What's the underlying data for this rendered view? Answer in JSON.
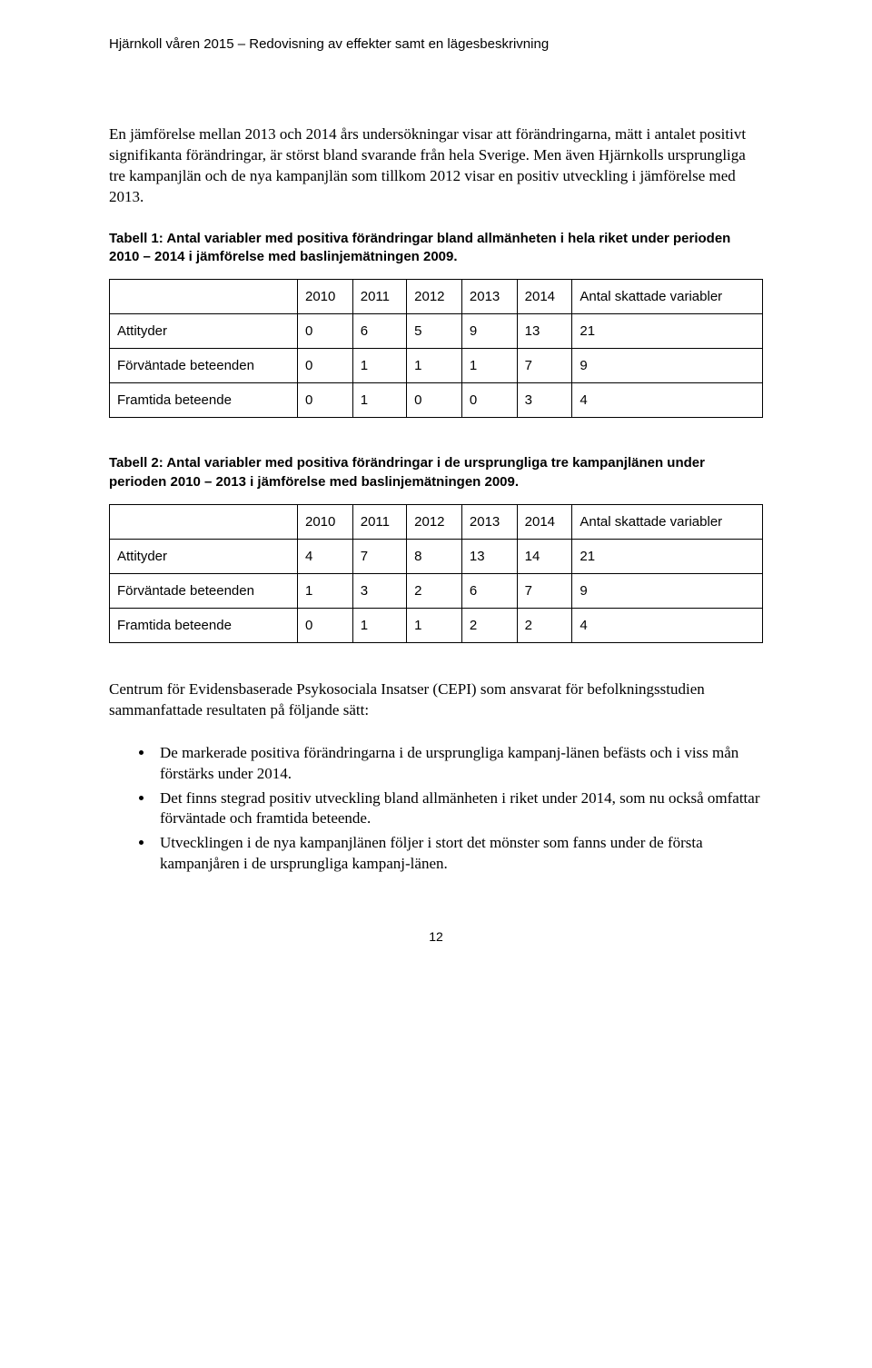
{
  "header": {
    "running_title": "Hjärnkoll våren 2015 – Redovisning av effekter samt en lägesbeskrivning"
  },
  "paragraphs": {
    "p1": "En jämförelse mellan 2013 och 2014 års undersökningar visar att förändringarna, mätt i antalet positivt signifikanta förändringar, är störst bland svarande från hela Sverige. Men även Hjärnkolls ursprungliga tre kampanjlän och de nya kampanjlän som tillkom 2012 visar en positiv utveckling i jämförelse med 2013.",
    "p2": "Centrum för Evidensbaserade Psykosociala Insatser (CEPI) som ansvarat för befolkningsstudien sammanfattade resultaten på följande sätt:"
  },
  "table1": {
    "caption": "Tabell 1: Antal variabler med positiva förändringar bland allmänheten i hela riket under perioden 2010 – 2014 i jämförelse med baslinjemätningen 2009.",
    "columns": [
      "2010",
      "2011",
      "2012",
      "2013",
      "2014",
      "Antal skattade variabler"
    ],
    "rows": [
      {
        "label": "Attityder",
        "cells": [
          "0",
          "6",
          "5",
          "9",
          "13",
          "21"
        ]
      },
      {
        "label": "Förväntade beteenden",
        "cells": [
          "0",
          "1",
          "1",
          "1",
          "7",
          "9"
        ]
      },
      {
        "label": "Framtida beteende",
        "cells": [
          "0",
          "1",
          "0",
          "0",
          "3",
          "4"
        ]
      }
    ]
  },
  "table2": {
    "caption": "Tabell 2: Antal variabler med positiva förändringar i de ursprungliga tre kampanjlänen under perioden 2010 – 2013 i jämförelse med baslinjemätningen 2009.",
    "columns": [
      "2010",
      "2011",
      "2012",
      "2013",
      "2014",
      "Antal skattade variabler"
    ],
    "rows": [
      {
        "label": "Attityder",
        "cells": [
          "4",
          "7",
          "8",
          "13",
          "14",
          "21"
        ]
      },
      {
        "label": "Förväntade beteenden",
        "cells": [
          "1",
          "3",
          "2",
          "6",
          "7",
          "9"
        ]
      },
      {
        "label": "Framtida beteende",
        "cells": [
          "0",
          "1",
          "1",
          "2",
          "2",
          "4"
        ]
      }
    ]
  },
  "bullets": [
    "De markerade positiva förändringarna i de ursprungliga kampanj-länen befästs och i viss mån förstärks under 2014.",
    "Det finns stegrad positiv utveckling bland allmänheten i riket under 2014, som nu också omfattar förväntade och framtida beteende.",
    "Utvecklingen i de nya kampanjlänen följer i stort det mönster som fanns under de första kampanjåren i de ursprungliga kampanj-länen."
  ],
  "page_number": "12",
  "colors": {
    "text": "#000000",
    "background": "#ffffff",
    "border": "#000000"
  }
}
